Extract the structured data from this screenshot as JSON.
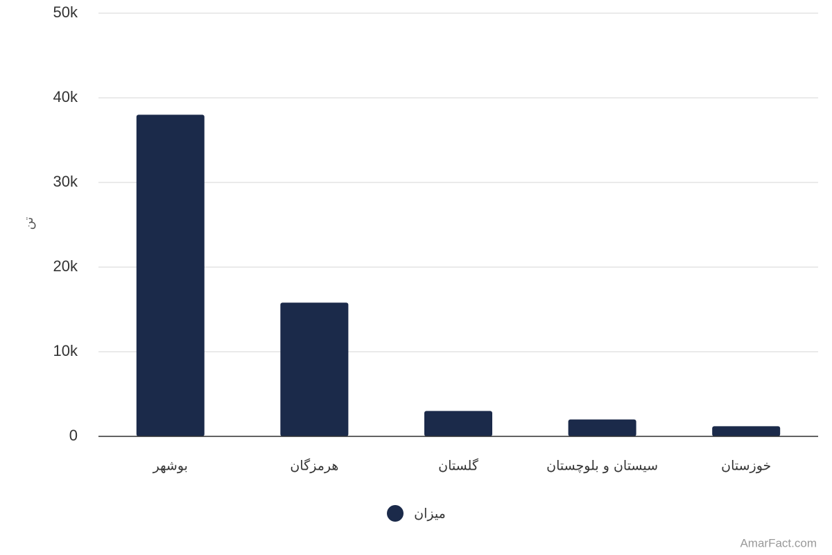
{
  "chart_data": {
    "type": "bar",
    "y_label": "تن",
    "categories": [
      "بوشهر",
      "هرمزگان",
      "گلستان",
      "سیستان و بلوچستان",
      "خوزستان"
    ],
    "series": [
      {
        "name": "میزان",
        "color": "#1b2a4a",
        "values": [
          38000,
          15800,
          3000,
          2000,
          1200
        ]
      }
    ],
    "ylim": [
      0,
      50000
    ],
    "yticks": [
      0,
      {
        "value": 10000,
        "label": "10k"
      },
      {
        "value": 20000,
        "label": "20k"
      },
      {
        "value": 30000,
        "label": "30k"
      },
      {
        "value": 40000,
        "label": "40k"
      },
      {
        "value": 50000,
        "label": "50k"
      }
    ],
    "grid": true,
    "legend": "bottom",
    "watermark": "AmarFact.com"
  }
}
